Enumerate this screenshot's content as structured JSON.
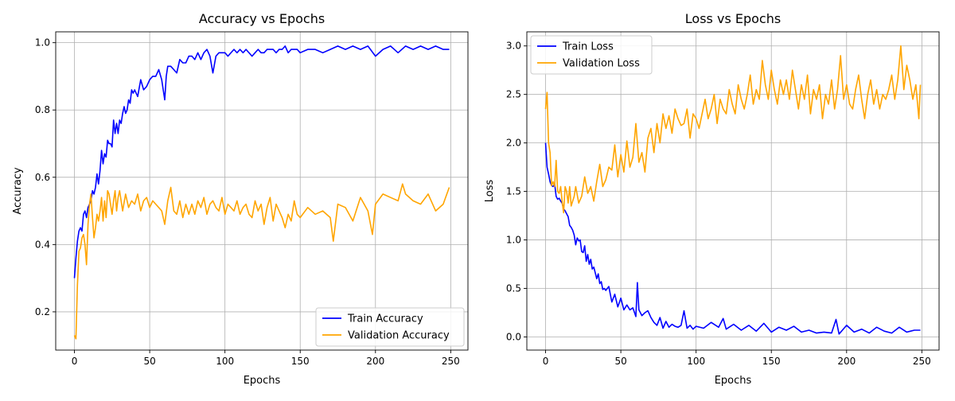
{
  "chart_data": [
    {
      "type": "line",
      "title": "Accuracy vs Epochs",
      "xlabel": "Epochs",
      "ylabel": "Accuracy",
      "xlim": [
        -12.45,
        261.45
      ],
      "ylim": [
        0.0863,
        1.0323
      ],
      "xticks": [
        0,
        50,
        100,
        150,
        200,
        250
      ],
      "yticks": [
        0.2,
        0.4,
        0.6,
        0.8,
        1.0
      ],
      "ytick_labels": [
        "0.2",
        "0.4",
        "0.6",
        "0.8",
        "1.0"
      ],
      "grid": true,
      "legend_position": "lower-right",
      "series": [
        {
          "name": "Train Accuracy",
          "color": "#0000ff",
          "x": [
            0,
            1,
            2,
            3,
            4,
            5,
            6,
            7,
            8,
            9,
            10,
            11,
            12,
            13,
            14,
            15,
            16,
            17,
            18,
            19,
            20,
            21,
            22,
            23,
            24,
            25,
            26,
            27,
            28,
            29,
            30,
            31,
            32,
            33,
            34,
            35,
            36,
            37,
            38,
            39,
            40,
            42,
            44,
            46,
            48,
            50,
            52,
            54,
            56,
            58,
            60,
            61,
            62,
            64,
            66,
            68,
            70,
            72,
            74,
            76,
            78,
            80,
            82,
            84,
            86,
            88,
            90,
            92,
            94,
            96,
            98,
            100,
            102,
            104,
            106,
            108,
            110,
            112,
            114,
            116,
            118,
            120,
            122,
            124,
            126,
            128,
            130,
            132,
            134,
            136,
            138,
            140,
            142,
            144,
            146,
            148,
            150,
            155,
            160,
            165,
            170,
            175,
            180,
            185,
            190,
            195,
            200,
            205,
            210,
            215,
            220,
            225,
            230,
            235,
            240,
            245,
            249
          ],
          "y": [
            0.3,
            0.36,
            0.41,
            0.44,
            0.45,
            0.44,
            0.49,
            0.5,
            0.48,
            0.51,
            0.52,
            0.53,
            0.56,
            0.55,
            0.57,
            0.61,
            0.58,
            0.62,
            0.68,
            0.64,
            0.67,
            0.66,
            0.71,
            0.7,
            0.7,
            0.69,
            0.77,
            0.73,
            0.76,
            0.73,
            0.77,
            0.76,
            0.79,
            0.81,
            0.79,
            0.8,
            0.83,
            0.82,
            0.86,
            0.85,
            0.86,
            0.84,
            0.89,
            0.86,
            0.87,
            0.89,
            0.9,
            0.9,
            0.92,
            0.89,
            0.83,
            0.9,
            0.93,
            0.93,
            0.92,
            0.91,
            0.95,
            0.94,
            0.94,
            0.96,
            0.96,
            0.95,
            0.97,
            0.95,
            0.97,
            0.98,
            0.96,
            0.91,
            0.96,
            0.97,
            0.97,
            0.97,
            0.96,
            0.97,
            0.98,
            0.97,
            0.98,
            0.97,
            0.98,
            0.97,
            0.96,
            0.97,
            0.98,
            0.97,
            0.97,
            0.98,
            0.98,
            0.98,
            0.97,
            0.98,
            0.98,
            0.99,
            0.97,
            0.98,
            0.98,
            0.98,
            0.97,
            0.98,
            0.98,
            0.97,
            0.98,
            0.99,
            0.98,
            0.99,
            0.98,
            0.99,
            0.96,
            0.98,
            0.99,
            0.97,
            0.99,
            0.98,
            0.99,
            0.98,
            0.99,
            0.98,
            0.98
          ]
        },
        {
          "name": "Validation Accuracy",
          "color": "#ffa500",
          "x": [
            0,
            1,
            2,
            3,
            4,
            5,
            6,
            7,
            8,
            9,
            10,
            11,
            12,
            13,
            14,
            15,
            16,
            17,
            18,
            19,
            20,
            21,
            22,
            23,
            24,
            25,
            26,
            27,
            28,
            29,
            30,
            32,
            34,
            36,
            38,
            40,
            42,
            44,
            46,
            48,
            50,
            52,
            54,
            56,
            58,
            60,
            62,
            64,
            66,
            68,
            70,
            72,
            74,
            76,
            78,
            80,
            82,
            84,
            86,
            88,
            90,
            92,
            94,
            96,
            98,
            100,
            102,
            104,
            106,
            108,
            110,
            112,
            114,
            116,
            118,
            120,
            122,
            124,
            126,
            128,
            130,
            132,
            134,
            136,
            138,
            140,
            142,
            144,
            146,
            148,
            150,
            155,
            160,
            165,
            170,
            172,
            175,
            180,
            185,
            190,
            195,
            198,
            200,
            205,
            210,
            215,
            218,
            220,
            225,
            230,
            235,
            240,
            245,
            249
          ],
          "y": [
            0.13,
            0.12,
            0.28,
            0.38,
            0.39,
            0.42,
            0.43,
            0.4,
            0.34,
            0.46,
            0.52,
            0.55,
            0.48,
            0.42,
            0.45,
            0.49,
            0.47,
            0.5,
            0.54,
            0.47,
            0.53,
            0.48,
            0.56,
            0.55,
            0.52,
            0.49,
            0.53,
            0.56,
            0.5,
            0.54,
            0.56,
            0.5,
            0.55,
            0.51,
            0.53,
            0.52,
            0.55,
            0.5,
            0.53,
            0.54,
            0.51,
            0.53,
            0.52,
            0.51,
            0.5,
            0.46,
            0.53,
            0.57,
            0.5,
            0.49,
            0.53,
            0.48,
            0.52,
            0.49,
            0.52,
            0.49,
            0.53,
            0.51,
            0.54,
            0.49,
            0.52,
            0.53,
            0.51,
            0.5,
            0.54,
            0.49,
            0.52,
            0.51,
            0.5,
            0.53,
            0.49,
            0.51,
            0.52,
            0.49,
            0.48,
            0.53,
            0.5,
            0.52,
            0.46,
            0.51,
            0.54,
            0.47,
            0.52,
            0.5,
            0.48,
            0.45,
            0.49,
            0.47,
            0.53,
            0.49,
            0.48,
            0.51,
            0.49,
            0.5,
            0.48,
            0.41,
            0.52,
            0.51,
            0.47,
            0.54,
            0.5,
            0.43,
            0.52,
            0.55,
            0.54,
            0.53,
            0.58,
            0.55,
            0.53,
            0.52,
            0.55,
            0.5,
            0.52,
            0.57
          ]
        }
      ]
    },
    {
      "type": "line",
      "title": "Loss vs Epochs",
      "xlabel": "Epochs",
      "ylabel": "Loss",
      "xlim": [
        -12.45,
        261.45
      ],
      "ylim": [
        -0.1354,
        3.1454
      ],
      "xticks": [
        0,
        50,
        100,
        150,
        200,
        250
      ],
      "yticks": [
        0.0,
        0.5,
        1.0,
        1.5,
        2.0,
        2.5,
        3.0
      ],
      "ytick_labels": [
        "0.0",
        "0.5",
        "1.0",
        "1.5",
        "2.0",
        "2.5",
        "3.0"
      ],
      "grid": true,
      "legend_position": "top-left",
      "series": [
        {
          "name": "Train Loss",
          "color": "#0000ff",
          "x": [
            0,
            1,
            2,
            3,
            4,
            5,
            6,
            7,
            8,
            9,
            10,
            11,
            12,
            13,
            14,
            15,
            16,
            17,
            18,
            19,
            20,
            21,
            22,
            23,
            24,
            25,
            26,
            27,
            28,
            29,
            30,
            31,
            32,
            33,
            34,
            35,
            36,
            37,
            38,
            39,
            40,
            42,
            44,
            46,
            48,
            50,
            52,
            54,
            56,
            58,
            60,
            61,
            62,
            64,
            66,
            68,
            70,
            72,
            74,
            76,
            78,
            80,
            82,
            84,
            86,
            88,
            90,
            92,
            94,
            96,
            98,
            100,
            105,
            110,
            115,
            118,
            120,
            125,
            130,
            135,
            140,
            145,
            150,
            155,
            160,
            165,
            170,
            175,
            180,
            185,
            190,
            193,
            195,
            200,
            205,
            210,
            215,
            220,
            225,
            230,
            235,
            240,
            245,
            249
          ],
          "y": [
            2.0,
            1.75,
            1.68,
            1.6,
            1.56,
            1.55,
            1.58,
            1.45,
            1.42,
            1.43,
            1.4,
            1.38,
            1.32,
            1.3,
            1.27,
            1.24,
            1.15,
            1.13,
            1.1,
            1.05,
            0.95,
            1.02,
            0.99,
            1.0,
            0.88,
            0.87,
            0.94,
            0.78,
            0.85,
            0.75,
            0.8,
            0.7,
            0.72,
            0.66,
            0.6,
            0.65,
            0.55,
            0.57,
            0.49,
            0.5,
            0.48,
            0.52,
            0.36,
            0.44,
            0.31,
            0.4,
            0.28,
            0.33,
            0.28,
            0.3,
            0.21,
            0.56,
            0.28,
            0.22,
            0.25,
            0.27,
            0.2,
            0.15,
            0.12,
            0.2,
            0.09,
            0.16,
            0.1,
            0.13,
            0.11,
            0.1,
            0.12,
            0.27,
            0.09,
            0.12,
            0.08,
            0.11,
            0.09,
            0.15,
            0.1,
            0.19,
            0.08,
            0.13,
            0.07,
            0.12,
            0.06,
            0.14,
            0.05,
            0.1,
            0.07,
            0.11,
            0.05,
            0.07,
            0.04,
            0.05,
            0.04,
            0.18,
            0.03,
            0.12,
            0.05,
            0.08,
            0.04,
            0.1,
            0.06,
            0.04,
            0.1,
            0.05,
            0.07,
            0.07
          ]
        },
        {
          "name": "Validation Loss",
          "color": "#ffa500",
          "x": [
            0,
            1,
            2,
            3,
            4,
            5,
            6,
            7,
            8,
            9,
            10,
            11,
            12,
            13,
            14,
            15,
            16,
            17,
            18,
            19,
            20,
            22,
            24,
            26,
            28,
            30,
            32,
            34,
            36,
            38,
            40,
            42,
            44,
            46,
            48,
            50,
            52,
            54,
            56,
            58,
            60,
            62,
            64,
            66,
            68,
            70,
            72,
            74,
            76,
            78,
            80,
            82,
            84,
            86,
            88,
            90,
            92,
            94,
            96,
            98,
            100,
            102,
            104,
            106,
            108,
            110,
            112,
            114,
            116,
            118,
            120,
            122,
            124,
            126,
            128,
            130,
            132,
            134,
            136,
            138,
            140,
            142,
            144,
            146,
            148,
            150,
            152,
            154,
            156,
            158,
            160,
            162,
            164,
            166,
            168,
            170,
            172,
            174,
            176,
            178,
            180,
            182,
            184,
            186,
            188,
            190,
            192,
            194,
            196,
            198,
            200,
            202,
            204,
            206,
            208,
            210,
            212,
            214,
            216,
            218,
            220,
            222,
            224,
            226,
            228,
            230,
            232,
            234,
            236,
            238,
            240,
            242,
            244,
            246,
            248,
            249
          ],
          "y": [
            2.35,
            2.52,
            2.0,
            1.9,
            1.56,
            1.6,
            1.55,
            1.82,
            1.5,
            1.48,
            1.55,
            1.4,
            1.28,
            1.55,
            1.5,
            1.38,
            1.55,
            1.35,
            1.4,
            1.45,
            1.55,
            1.38,
            1.45,
            1.65,
            1.48,
            1.55,
            1.4,
            1.6,
            1.78,
            1.55,
            1.62,
            1.75,
            1.72,
            1.98,
            1.65,
            1.88,
            1.7,
            2.02,
            1.75,
            1.85,
            2.2,
            1.8,
            1.9,
            1.7,
            2.05,
            2.15,
            1.9,
            2.2,
            2.0,
            2.3,
            2.15,
            2.28,
            2.1,
            2.35,
            2.25,
            2.18,
            2.2,
            2.35,
            2.05,
            2.3,
            2.25,
            2.15,
            2.3,
            2.45,
            2.25,
            2.35,
            2.5,
            2.2,
            2.45,
            2.35,
            2.3,
            2.55,
            2.4,
            2.3,
            2.6,
            2.45,
            2.35,
            2.5,
            2.7,
            2.4,
            2.55,
            2.45,
            2.85,
            2.6,
            2.45,
            2.75,
            2.55,
            2.4,
            2.65,
            2.5,
            2.65,
            2.45,
            2.75,
            2.55,
            2.35,
            2.6,
            2.45,
            2.7,
            2.3,
            2.55,
            2.45,
            2.6,
            2.25,
            2.5,
            2.4,
            2.65,
            2.35,
            2.55,
            2.9,
            2.45,
            2.6,
            2.4,
            2.35,
            2.55,
            2.7,
            2.45,
            2.25,
            2.5,
            2.65,
            2.4,
            2.55,
            2.35,
            2.5,
            2.45,
            2.55,
            2.7,
            2.45,
            2.65,
            3.0,
            2.55,
            2.8,
            2.65,
            2.45,
            2.6,
            2.25,
            2.6
          ]
        }
      ]
    }
  ]
}
